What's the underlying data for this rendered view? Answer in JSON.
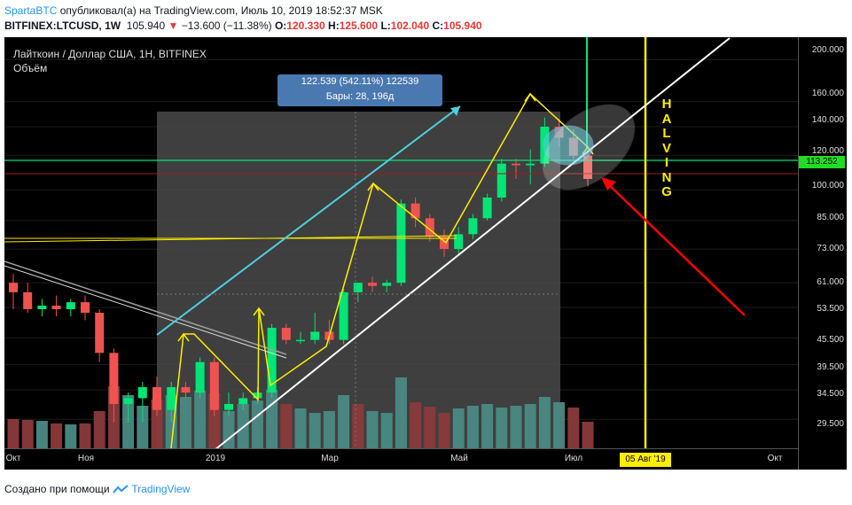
{
  "header": {
    "author": "SpartaBTC",
    "published_text": "опубликовал(а) на TradingView.com, Июль 10, 2019 18:52:37 MSK",
    "symbol_text": "BITFINEX:LTCUSD, 1W",
    "last_price": "105.940",
    "change_arrow": "▼",
    "change_text": "−13.600 (−11.38%)",
    "o_label": "O:",
    "o": "120.330",
    "h_label": "H:",
    "h": "125.600",
    "l_label": "L:",
    "l": "102.040",
    "c_label": "C:",
    "c": "105.940"
  },
  "chart": {
    "pair_title": "Лайткоин / Доллар США, 1H, BITFINEX",
    "volume_title": "Объём",
    "measure_line1": "122.539 (542.11%) 122539",
    "measure_line2": "Бары: 28, 196д",
    "halving_letters": [
      "H",
      "A",
      "L",
      "V",
      "I",
      "N",
      "G"
    ],
    "current_price_tag": "113.252",
    "date_tag": "05 Авг '19",
    "colors": {
      "up": "#00e676",
      "down": "#ef5350",
      "highlight": "#ffee00",
      "trend": "#ffffff",
      "channel": "#4dd0e1",
      "level": "#00e676",
      "arrow": "#ff0000"
    }
  },
  "y_axis": {
    "labels": [
      "200.000",
      "160.000",
      "140.000",
      "120.000",
      "100.000",
      "85.000",
      "73.000",
      "61.000",
      "53.500",
      "45.500",
      "39.500",
      "34.500",
      "29.500"
    ]
  },
  "x_axis": {
    "labels": [
      "Окт",
      "Ноя",
      "2019",
      "Мар",
      "Май",
      "Июл",
      "Окт"
    ]
  },
  "chart_data": {
    "type": "candlestick",
    "title": "Лайткоин / Доллар США, 1H, BITFINEX",
    "scale": "log",
    "ylim": [
      27,
      215
    ],
    "candles": [
      {
        "o": 61,
        "h": 64,
        "l": 53,
        "c": 58
      },
      {
        "o": 58,
        "h": 61,
        "l": 52,
        "c": 53
      },
      {
        "o": 53,
        "h": 56,
        "l": 51,
        "c": 54
      },
      {
        "o": 54,
        "h": 57,
        "l": 51,
        "c": 53
      },
      {
        "o": 53,
        "h": 56,
        "l": 51,
        "c": 55
      },
      {
        "o": 55,
        "h": 57,
        "l": 50,
        "c": 52
      },
      {
        "o": 52,
        "h": 53,
        "l": 40,
        "c": 42
      },
      {
        "o": 42,
        "h": 43,
        "l": 29,
        "c": 32
      },
      {
        "o": 32,
        "h": 34,
        "l": 29,
        "c": 33
      },
      {
        "o": 33,
        "h": 36,
        "l": 29,
        "c": 35
      },
      {
        "o": 35,
        "h": 37,
        "l": 30,
        "c": 31
      },
      {
        "o": 31,
        "h": 36,
        "l": 29,
        "c": 35
      },
      {
        "o": 35,
        "h": 36,
        "l": 33,
        "c": 34
      },
      {
        "o": 34,
        "h": 41,
        "l": 33,
        "c": 40
      },
      {
        "o": 40,
        "h": 41,
        "l": 30,
        "c": 31
      },
      {
        "o": 31,
        "h": 34,
        "l": 30,
        "c": 32
      },
      {
        "o": 32,
        "h": 34,
        "l": 31,
        "c": 33
      },
      {
        "o": 33,
        "h": 35,
        "l": 32,
        "c": 34
      },
      {
        "o": 34,
        "h": 49,
        "l": 33,
        "c": 48
      },
      {
        "o": 48,
        "h": 49,
        "l": 44,
        "c": 45
      },
      {
        "o": 45,
        "h": 47,
        "l": 44,
        "c": 45
      },
      {
        "o": 45,
        "h": 52,
        "l": 44,
        "c": 47
      },
      {
        "o": 47,
        "h": 50,
        "l": 44,
        "c": 45
      },
      {
        "o": 45,
        "h": 59,
        "l": 44,
        "c": 58
      },
      {
        "o": 58,
        "h": 61,
        "l": 55,
        "c": 61
      },
      {
        "o": 61,
        "h": 63,
        "l": 58,
        "c": 60
      },
      {
        "o": 60,
        "h": 62,
        "l": 58,
        "c": 61
      },
      {
        "o": 61,
        "h": 95,
        "l": 60,
        "c": 93
      },
      {
        "o": 93,
        "h": 96,
        "l": 82,
        "c": 86
      },
      {
        "o": 86,
        "h": 88,
        "l": 76,
        "c": 78
      },
      {
        "o": 78,
        "h": 81,
        "l": 70,
        "c": 73
      },
      {
        "o": 73,
        "h": 82,
        "l": 71,
        "c": 79
      },
      {
        "o": 79,
        "h": 88,
        "l": 77,
        "c": 86
      },
      {
        "o": 86,
        "h": 98,
        "l": 85,
        "c": 96
      },
      {
        "o": 96,
        "h": 118,
        "l": 94,
        "c": 115
      },
      {
        "o": 115,
        "h": 118,
        "l": 106,
        "c": 114
      },
      {
        "o": 114,
        "h": 124,
        "l": 103,
        "c": 115
      },
      {
        "o": 115,
        "h": 147,
        "l": 113,
        "c": 140
      },
      {
        "o": 140,
        "h": 146,
        "l": 126,
        "c": 132
      },
      {
        "o": 132,
        "h": 138,
        "l": 118,
        "c": 120
      },
      {
        "o": 120,
        "h": 126,
        "l": 102,
        "c": 106
      }
    ],
    "volume_series": [
      {
        "v": 33,
        "up": false
      },
      {
        "v": 32,
        "up": false
      },
      {
        "v": 31,
        "up": true
      },
      {
        "v": 28,
        "up": false
      },
      {
        "v": 27,
        "up": true
      },
      {
        "v": 28,
        "up": false
      },
      {
        "v": 42,
        "up": false
      },
      {
        "v": 70,
        "up": false
      },
      {
        "v": 60,
        "up": true
      },
      {
        "v": 48,
        "up": true
      },
      {
        "v": 55,
        "up": false
      },
      {
        "v": 60,
        "up": true
      },
      {
        "v": 58,
        "up": true
      },
      {
        "v": 65,
        "up": true
      },
      {
        "v": 62,
        "up": false
      },
      {
        "v": 42,
        "up": true
      },
      {
        "v": 50,
        "up": true
      },
      {
        "v": 54,
        "up": true
      },
      {
        "v": 66,
        "up": true
      },
      {
        "v": 50,
        "up": false
      },
      {
        "v": 45,
        "up": true
      },
      {
        "v": 40,
        "up": true
      },
      {
        "v": 42,
        "up": true
      },
      {
        "v": 60,
        "up": true
      },
      {
        "v": 50,
        "up": false
      },
      {
        "v": 42,
        "up": true
      },
      {
        "v": 40,
        "up": true
      },
      {
        "v": 80,
        "up": true
      },
      {
        "v": 52,
        "up": false
      },
      {
        "v": 47,
        "up": false
      },
      {
        "v": 40,
        "up": false
      },
      {
        "v": 45,
        "up": true
      },
      {
        "v": 48,
        "up": true
      },
      {
        "v": 50,
        "up": true
      },
      {
        "v": 46,
        "up": true
      },
      {
        "v": 48,
        "up": true
      },
      {
        "v": 50,
        "up": true
      },
      {
        "v": 58,
        "up": true
      },
      {
        "v": 52,
        "up": true
      },
      {
        "v": 46,
        "up": false
      },
      {
        "v": 30,
        "up": false
      }
    ]
  }
}
